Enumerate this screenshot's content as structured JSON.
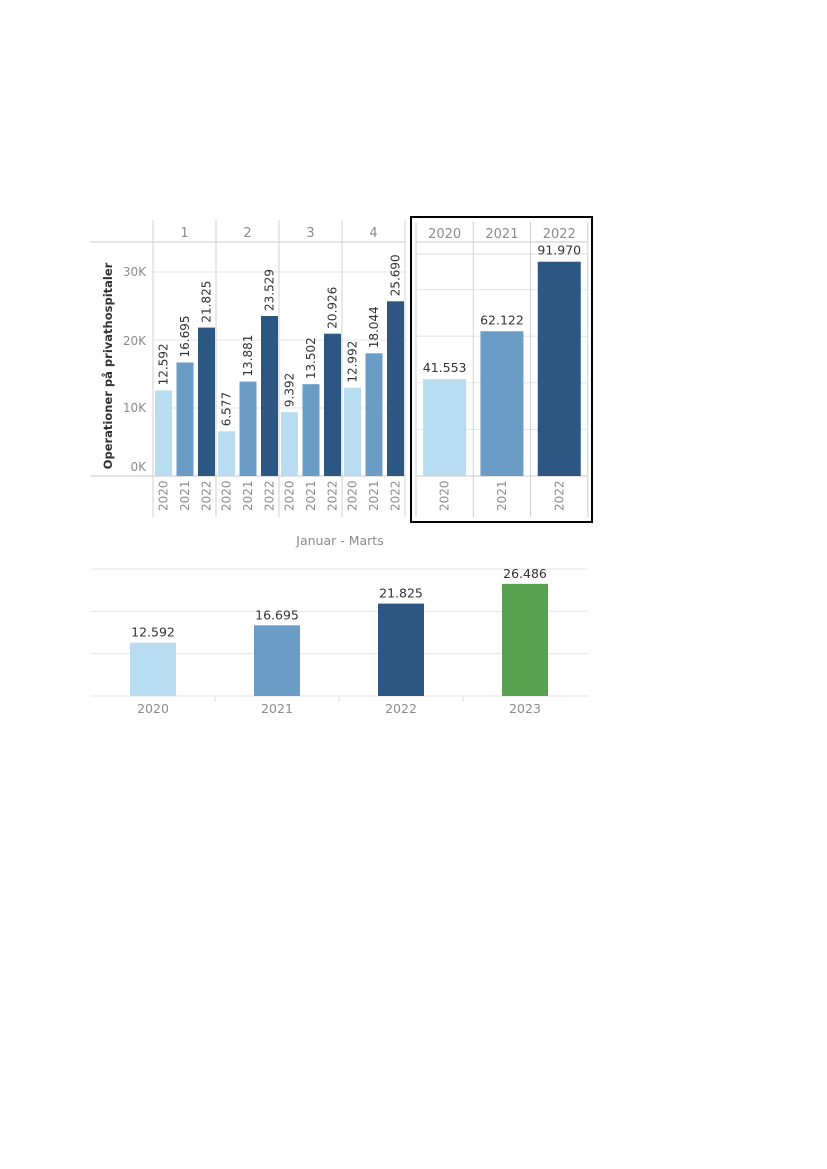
{
  "colors": {
    "y2020": "#b8ddf0",
    "y2021": "#6a9cc5",
    "y2022": "#2b5782",
    "y2023": "#57a14f",
    "grid": "#e6e6e6",
    "axis_text": "#8c8c8c",
    "label_text": "#333333"
  },
  "chart_data": [
    {
      "type": "bar",
      "ylabel": "Operationer på privathospitaler",
      "ylim": [
        0,
        30000
      ],
      "yticks": [
        "0K",
        "10K",
        "20K",
        "30K"
      ],
      "panel_labels": [
        "1",
        "2",
        "3",
        "4"
      ],
      "categories": [
        "2020",
        "2021",
        "2022"
      ],
      "panels": [
        {
          "label": "1",
          "values": [
            12592,
            16695,
            21825
          ],
          "value_labels": [
            "12.592",
            "16.695",
            "21.825"
          ]
        },
        {
          "label": "2",
          "values": [
            6577,
            13881,
            23529
          ],
          "value_labels": [
            "6.577",
            "13.881",
            "23.529"
          ]
        },
        {
          "label": "3",
          "values": [
            9392,
            13502,
            20926
          ],
          "value_labels": [
            "9.392",
            "13.502",
            "20.926"
          ]
        },
        {
          "label": "4",
          "values": [
            12992,
            18044,
            25690
          ],
          "value_labels": [
            "12.992",
            "18.044",
            "25.690"
          ]
        }
      ],
      "grid": true
    },
    {
      "type": "bar",
      "categories": [
        "2020",
        "2021",
        "2022"
      ],
      "values": [
        41553,
        62122,
        91970
      ],
      "value_labels": [
        "41.553",
        "62.122",
        "91.970"
      ],
      "ylim": [
        0,
        100000
      ],
      "grid": true
    },
    {
      "type": "bar",
      "title": "Januar - Marts",
      "categories": [
        "2020",
        "2021",
        "2022",
        "2023"
      ],
      "values": [
        12592,
        16695,
        21825,
        26486
      ],
      "value_labels": [
        "12.592",
        "16.695",
        "21.825",
        "26.486"
      ],
      "ylim": [
        0,
        30000
      ],
      "grid": true
    }
  ]
}
